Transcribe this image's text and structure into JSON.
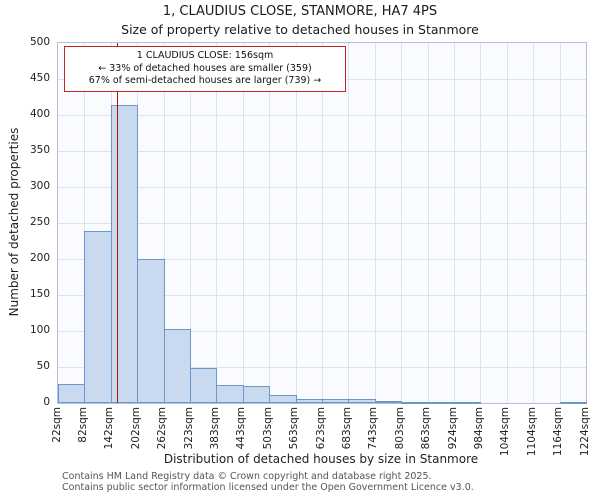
{
  "page": {
    "title": "1, CLAUDIUS CLOSE, STANMORE, HA7 4PS",
    "subtitle": "Size of property relative to detached houses in Stanmore"
  },
  "annotation": {
    "line1": "1 CLAUDIUS CLOSE: 156sqm",
    "line2": "← 33% of detached houses are smaller (359)",
    "line3": "67% of semi-detached houses are larger (739) →"
  },
  "footer": {
    "line1": "Contains HM Land Registry data © Crown copyright and database right 2025.",
    "line2": "Contains public sector information licensed under the Open Government Licence v3.0."
  },
  "chart_data": {
    "type": "bar",
    "title": "1, CLAUDIUS CLOSE, STANMORE, HA7 4PS",
    "subtitle": "Size of property relative to detached houses in Stanmore",
    "xlabel": "Distribution of detached houses by size in Stanmore",
    "ylabel": "Number of detached properties",
    "bin_edge_labels": [
      "22sqm",
      "82sqm",
      "142sqm",
      "202sqm",
      "262sqm",
      "323sqm",
      "383sqm",
      "443sqm",
      "503sqm",
      "563sqm",
      "623sqm",
      "683sqm",
      "743sqm",
      "803sqm",
      "863sqm",
      "924sqm",
      "984sqm",
      "1044sqm",
      "1104sqm",
      "1164sqm",
      "1224sqm"
    ],
    "bin_start_sqm": 22,
    "bin_width_sqm": 60,
    "values": [
      27,
      239,
      414,
      200,
      103,
      48,
      25,
      23,
      11,
      6,
      5,
      5,
      3,
      2,
      2,
      1,
      0,
      0,
      0,
      2
    ],
    "ylim": [
      0,
      500
    ],
    "ytick_step": 50,
    "grid": true,
    "legend": "none",
    "marker": {
      "value_sqm": 156,
      "label": "1 CLAUDIUS CLOSE: 156sqm"
    },
    "colors": {
      "bar_fill": "#c9d9ef",
      "bar_border": "#6d97c8",
      "marker_line": "#aa1111",
      "grid": "#dbe2f0",
      "annotation_border": "#cc2222"
    }
  }
}
